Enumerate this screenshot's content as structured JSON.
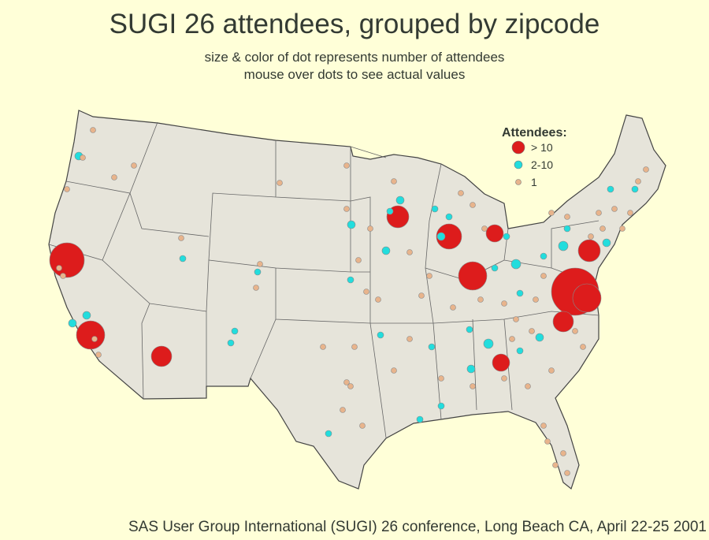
{
  "header": {
    "title": "SUGI 26 attendees, grouped by zipcode",
    "subtitle": [
      "size & color of dot represents number of attendees",
      "mouse over dots to see actual values"
    ]
  },
  "legend": {
    "title": "Attendees:",
    "items": [
      {
        "label": "> 10",
        "color": "#dd1c1c"
      },
      {
        "label": "2-10",
        "color": "#22dddd"
      },
      {
        "label": "1",
        "color": "#e8b48c"
      }
    ]
  },
  "footnote": "SAS User Group International (SUGI) 26 conference, Long Beach CA, April 22-25 2001"
}
